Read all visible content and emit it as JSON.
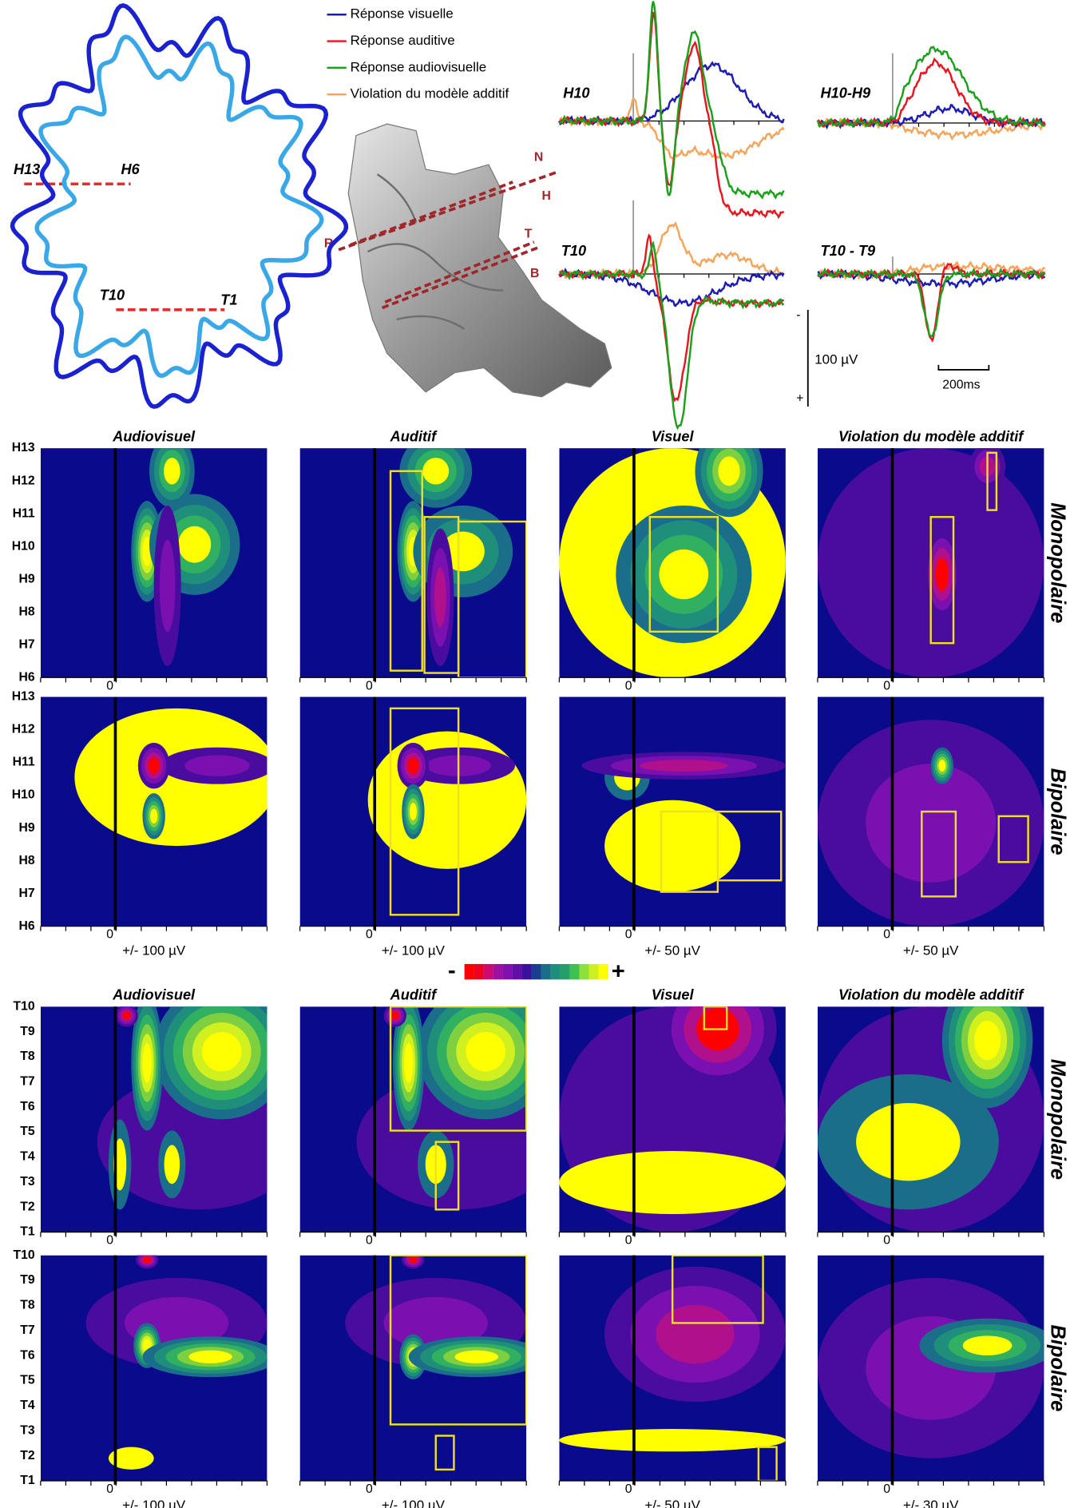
{
  "legend": {
    "items": [
      {
        "label": "Réponse visuelle",
        "color": "#1c1cb0"
      },
      {
        "label": "Réponse auditive",
        "color": "#e8141e"
      },
      {
        "label": "Réponse audiovisuelle",
        "color": "#1aa01a"
      },
      {
        "label": "Violation du modèle additif",
        "color": "#f5a55a"
      }
    ]
  },
  "brain": {
    "labels": [
      "H13",
      "H6",
      "T10",
      "T1"
    ]
  },
  "electrode_3d": {
    "labels": [
      "N",
      "H",
      "R",
      "T",
      "B"
    ]
  },
  "traces": {
    "panels": [
      "H10",
      "H10-H9",
      "T10",
      "T10 - T9"
    ],
    "scale": {
      "amplitude": "100 µV",
      "time": "200ms",
      "minus": "-",
      "plus": "+"
    }
  },
  "colorbar": {
    "minus": "-",
    "plus": "+"
  },
  "heatmaps": {
    "column_titles": [
      "Audiovisuel",
      "Auditif",
      "Visuel",
      "Violation du modèle additif"
    ],
    "zero_label": "0",
    "blocks": [
      {
        "electrodes": [
          "H13",
          "H12",
          "H11",
          "H10",
          "H9",
          "H8",
          "H7",
          "H6"
        ],
        "rows": [
          "Monopolaire",
          "Bipolaire"
        ],
        "amplitudes": [
          "+/- 100 µV",
          "+/- 100 µV",
          "+/- 50 µV",
          "+/- 50 µV"
        ]
      },
      {
        "electrodes": [
          "T10",
          "T9",
          "T8",
          "T7",
          "T6",
          "T5",
          "T4",
          "T3",
          "T2",
          "T1"
        ],
        "rows": [
          "Monopolaire",
          "Bipolaire"
        ],
        "amplitudes": [
          "+/- 100 µV",
          "+/- 100 µV",
          "+/- 50 µV",
          "+/- 30 µV"
        ]
      }
    ]
  }
}
